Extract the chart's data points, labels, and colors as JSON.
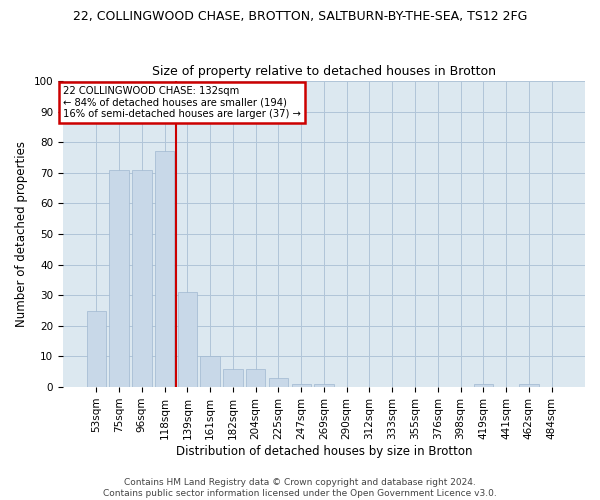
{
  "title_line1": "22, COLLINGWOOD CHASE, BROTTON, SALTBURN-BY-THE-SEA, TS12 2FG",
  "title_line2": "Size of property relative to detached houses in Brotton",
  "xlabel": "Distribution of detached houses by size in Brotton",
  "ylabel": "Number of detached properties",
  "categories": [
    "53sqm",
    "75sqm",
    "96sqm",
    "118sqm",
    "139sqm",
    "161sqm",
    "182sqm",
    "204sqm",
    "225sqm",
    "247sqm",
    "269sqm",
    "290sqm",
    "312sqm",
    "333sqm",
    "355sqm",
    "376sqm",
    "398sqm",
    "419sqm",
    "441sqm",
    "462sqm",
    "484sqm"
  ],
  "values": [
    25,
    71,
    71,
    77,
    31,
    10,
    6,
    6,
    3,
    1,
    1,
    0,
    0,
    0,
    0,
    0,
    0,
    1,
    0,
    1,
    0
  ],
  "bar_color": "#c8d8e8",
  "bar_edge_color": "#a0b8d0",
  "vline_pos": 3.5,
  "vline_color": "#cc0000",
  "annotation_text": "22 COLLINGWOOD CHASE: 132sqm\n← 84% of detached houses are smaller (194)\n16% of semi-detached houses are larger (37) →",
  "annotation_box_color": "#cc0000",
  "ylim": [
    0,
    100
  ],
  "yticks": [
    0,
    10,
    20,
    30,
    40,
    50,
    60,
    70,
    80,
    90,
    100
  ],
  "grid_color": "#b0c4d8",
  "bg_color": "#dce8f0",
  "footer": "Contains HM Land Registry data © Crown copyright and database right 2024.\nContains public sector information licensed under the Open Government Licence v3.0.",
  "title_fontsize": 9,
  "subtitle_fontsize": 9,
  "axis_label_fontsize": 8.5,
  "tick_fontsize": 7.5,
  "footer_fontsize": 6.5
}
